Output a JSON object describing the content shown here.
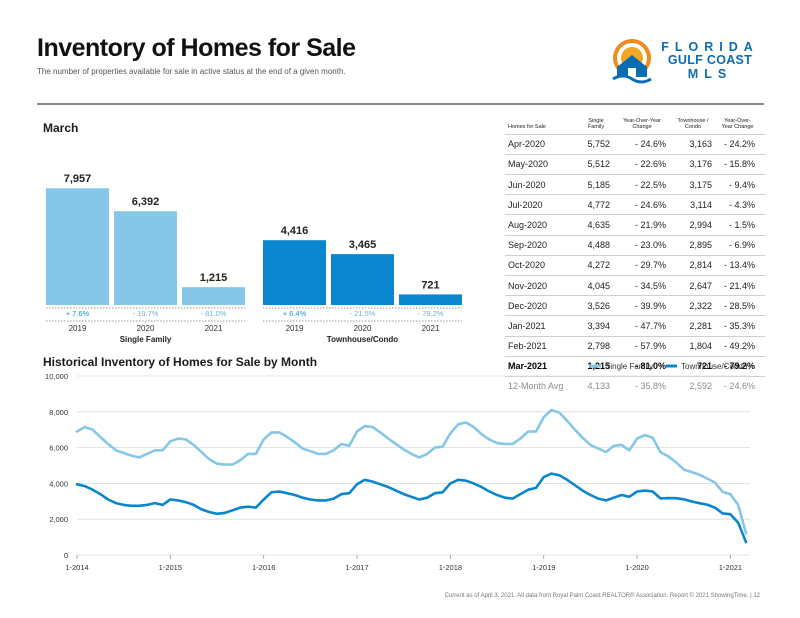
{
  "header": {
    "title": "Inventory of Homes for Sale",
    "subtitle": "The number of properties available for sale in active status at the end of a given month."
  },
  "logo": {
    "line1": "FLORIDA",
    "line2": "GULF COAST",
    "line3": "MLS"
  },
  "bar_section": {
    "title": "March"
  },
  "table": {
    "headers": [
      "Homes for Sale",
      "Single Family",
      "Year-Over-Year Change",
      "Townhouse / Condo",
      "Year-Over-Year Change"
    ],
    "rows": [
      [
        "Apr-2020",
        "5,752",
        "- 24.6%",
        "3,163",
        "- 24.2%"
      ],
      [
        "May-2020",
        "5,512",
        "- 22.6%",
        "3,176",
        "- 15.8%"
      ],
      [
        "Jun-2020",
        "5,185",
        "- 22.5%",
        "3,175",
        "- 9.4%"
      ],
      [
        "Jul-2020",
        "4,772",
        "- 24.6%",
        "3,114",
        "- 4.3%"
      ],
      [
        "Aug-2020",
        "4,635",
        "- 21.9%",
        "2,994",
        "- 1.5%"
      ],
      [
        "Sep-2020",
        "4,488",
        "- 23.0%",
        "2,895",
        "- 6.9%"
      ],
      [
        "Oct-2020",
        "4,272",
        "- 29.7%",
        "2,814",
        "- 13.4%"
      ],
      [
        "Nov-2020",
        "4,045",
        "- 34.5%",
        "2,647",
        "- 21.4%"
      ],
      [
        "Dec-2020",
        "3,526",
        "- 39.9%",
        "2,322",
        "- 28.5%"
      ],
      [
        "Jan-2021",
        "3,394",
        "- 47.7%",
        "2,281",
        "- 35.3%"
      ],
      [
        "Feb-2021",
        "2,798",
        "- 57.9%",
        "1,804",
        "- 49.2%"
      ]
    ],
    "highlight_row": [
      "Mar-2021",
      "1,215",
      "- 81.0%",
      "721",
      "- 79.2%"
    ],
    "avg_row": [
      "12-Month Avg",
      "4,133",
      "- 35.8%",
      "2,592",
      "- 24.6%"
    ]
  },
  "line_section": {
    "title": "Historical Inventory of Homes for Sale by Month"
  },
  "footer": {
    "text": "Current as of April 3, 2021. All data from Royal Palm Coast REALTOR® Association. Report © 2021 ShowingTime. | 12"
  },
  "colors": {
    "single_family": "#86c7e8",
    "townhouse": "#0a86cf",
    "neg_change": "#6cb2d9",
    "pos_change": "#1a90d8"
  },
  "chart_data": [
    {
      "type": "bar",
      "title": "March",
      "groups": [
        {
          "name": "Single Family",
          "categories": [
            "2019",
            "2020",
            "2021"
          ],
          "values": [
            7957,
            6392,
            1215
          ],
          "value_labels": [
            "7,957",
            "6,392",
            "1,215"
          ],
          "changes": [
            "+ 7.6%",
            "- 19.7%",
            "- 81.0%"
          ]
        },
        {
          "name": "Townhouse/Condo",
          "categories": [
            "2019",
            "2020",
            "2021"
          ],
          "values": [
            4416,
            3465,
            721
          ],
          "value_labels": [
            "4,416",
            "3,465",
            "721"
          ],
          "changes": [
            "+ 6.4%",
            "- 21.5%",
            "- 79.2%"
          ]
        }
      ],
      "ylim": [
        0,
        9200
      ]
    },
    {
      "type": "line",
      "title": "Historical Inventory of Homes for Sale by Month",
      "x_start": "2014-01",
      "x_ticks": [
        "1-2014",
        "1-2015",
        "1-2016",
        "1-2017",
        "1-2018",
        "1-2019",
        "1-2020",
        "1-2021"
      ],
      "y_ticks": [
        "0",
        "2,000",
        "4,000",
        "6,000",
        "8,000",
        "10,000"
      ],
      "ylim": [
        0,
        10000
      ],
      "legend": [
        "Single Family",
        "Townhouse/Condo"
      ],
      "series": [
        {
          "name": "Single Family",
          "values": [
            6900,
            7150,
            7000,
            6600,
            6200,
            5850,
            5700,
            5550,
            5450,
            5650,
            5850,
            5850,
            6350,
            6500,
            6450,
            6150,
            5750,
            5350,
            5100,
            5050,
            5050,
            5300,
            5650,
            5650,
            6450,
            6850,
            6850,
            6600,
            6300,
            5950,
            5800,
            5650,
            5650,
            5850,
            6200,
            6100,
            6900,
            7200,
            7150,
            6850,
            6500,
            6200,
            5900,
            5650,
            5450,
            5650,
            6000,
            6050,
            6800,
            7300,
            7400,
            7150,
            6750,
            6450,
            6250,
            6200,
            6200,
            6500,
            6900,
            6900,
            7700,
            8100,
            7950,
            7500,
            7000,
            6550,
            6150,
            5950,
            5750,
            6100,
            6150,
            5850,
            6500,
            6700,
            6550,
            5750,
            5512,
            5185,
            4772,
            4635,
            4488,
            4272,
            4045,
            3526,
            3394,
            2798,
            1215
          ]
        },
        {
          "name": "Townhouse/Condo",
          "values": [
            3950,
            3850,
            3650,
            3400,
            3100,
            2900,
            2800,
            2750,
            2750,
            2800,
            2900,
            2800,
            3100,
            3050,
            2950,
            2800,
            2550,
            2400,
            2300,
            2350,
            2500,
            2650,
            2700,
            2650,
            3100,
            3500,
            3550,
            3450,
            3350,
            3200,
            3100,
            3050,
            3050,
            3150,
            3400,
            3450,
            3950,
            4200,
            4100,
            3950,
            3800,
            3600,
            3400,
            3250,
            3100,
            3200,
            3450,
            3500,
            4000,
            4200,
            4150,
            4000,
            3800,
            3550,
            3350,
            3200,
            3150,
            3400,
            3650,
            3750,
            4350,
            4550,
            4450,
            4200,
            3900,
            3600,
            3350,
            3150,
            3050,
            3200,
            3350,
            3250,
            3550,
            3600,
            3550,
            3163,
            3176,
            3175,
            3114,
            2994,
            2895,
            2814,
            2647,
            2322,
            2281,
            1804,
            721
          ]
        }
      ]
    }
  ]
}
